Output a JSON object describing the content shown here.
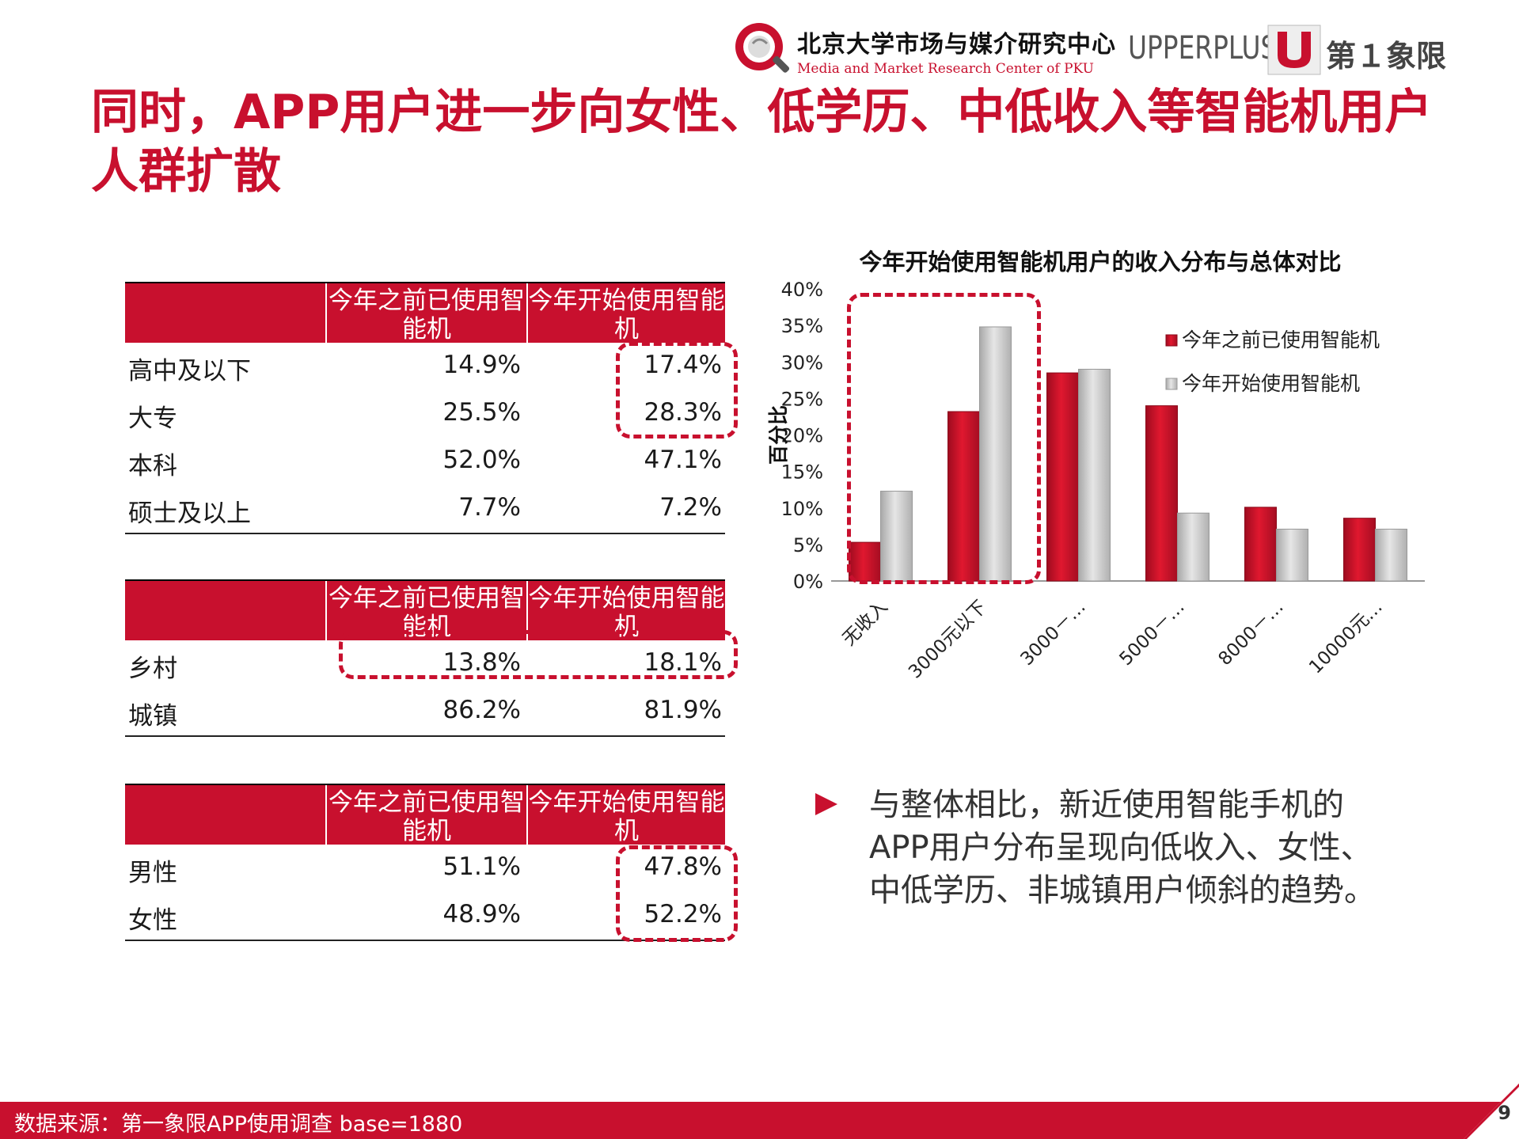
{
  "header": {
    "pku_cn": "北京大学市场与媒介研究中心",
    "pku_en": "Media and Market Research Center of PKU",
    "upper_word": "UPPERPLUS",
    "brand": "第１象限"
  },
  "title": "同时，APP用户进一步向女性、低学历、中低收入等智能机用户人群扩散",
  "tables": [
    {
      "headers": [
        "今年之前已使用智能机",
        "今年开始使用智能机"
      ],
      "rows": [
        {
          "label": "高中及以下",
          "v1": "14.9%",
          "v2": "17.4%"
        },
        {
          "label": "大专",
          "v1": "25.5%",
          "v2": "28.3%"
        },
        {
          "label": "本科",
          "v1": "52.0%",
          "v2": "47.1%"
        },
        {
          "label": "硕士及以上",
          "v1": "7.7%",
          "v2": "7.2%"
        }
      ]
    },
    {
      "headers": [
        "今年之前已使用智能机",
        "今年开始使用智能机"
      ],
      "rows": [
        {
          "label": "乡村",
          "v1": "13.8%",
          "v2": "18.1%"
        },
        {
          "label": "城镇",
          "v1": "86.2%",
          "v2": "81.9%"
        }
      ]
    },
    {
      "headers": [
        "今年之前已使用智能机",
        "今年开始使用智能机"
      ],
      "rows": [
        {
          "label": "男性",
          "v1": "51.1%",
          "v2": "47.8%"
        },
        {
          "label": "女性",
          "v1": "48.9%",
          "v2": "52.2%"
        }
      ]
    }
  ],
  "chart_data": {
    "type": "bar",
    "title": "今年开始使用智能机用户的收入分布与总体对比",
    "ylabel": "百分比",
    "xlabel": "",
    "categories": [
      "无收入",
      "3000元以下",
      "3000－…",
      "5000－…",
      "8000－…",
      "10000元…"
    ],
    "series": [
      {
        "name": "今年之前已使用智能机",
        "values": [
          5.3,
          23.2,
          28.5,
          24.0,
          10.1,
          8.6
        ]
      },
      {
        "name": "今年开始使用智能机",
        "values": [
          12.3,
          34.8,
          29.0,
          9.3,
          7.1,
          7.1
        ]
      }
    ],
    "ylim": [
      0,
      40
    ],
    "yticks": [
      "0%",
      "5%",
      "10%",
      "15%",
      "20%",
      "25%",
      "30%",
      "35%",
      "40%"
    ],
    "grid": false,
    "legend": "top-right",
    "colors": [
      "#c8102e",
      "#c0c0c0"
    ]
  },
  "bullet": "与整体相比，新近使用智能手机的APP用户分布呈现向低收入、女性、中低学历、非城镇用户倾斜的趋势。",
  "footer": {
    "source": "数据来源：第一象限APP使用调查 base=1880",
    "page": "9"
  }
}
